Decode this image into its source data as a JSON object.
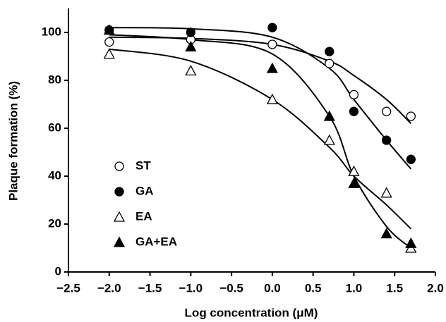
{
  "chart_data": {
    "type": "scatter",
    "x_label": "Log concentration (μM)",
    "y_label": "Plaque formation (%)",
    "x": [
      -2,
      -1,
      0,
      0.7,
      1,
      1.4,
      1.7
    ],
    "series": [
      {
        "name": "ST",
        "color": "#000000",
        "marker": "circle",
        "filled": false,
        "values": [
          96,
          97,
          95,
          87,
          74,
          67,
          65
        ],
        "fit": [
          98,
          97.5,
          95,
          88,
          82,
          72,
          62
        ]
      },
      {
        "name": "GA",
        "color": "#000000",
        "marker": "circle",
        "filled": true,
        "values": [
          101,
          100,
          102,
          92,
          67,
          55,
          47
        ],
        "fit": [
          102,
          101.5,
          98,
          85,
          72,
          55,
          43
        ]
      },
      {
        "name": "EA",
        "color": "#000000",
        "marker": "triangle",
        "filled": false,
        "values": [
          91,
          84,
          72,
          55,
          42,
          33,
          10
        ],
        "fit": [
          93,
          88,
          72,
          52,
          40,
          28,
          18
        ]
      },
      {
        "name": "GA+EA",
        "color": "#000000",
        "marker": "triangle",
        "filled": true,
        "values": [
          101,
          94,
          85,
          65,
          37,
          16,
          12
        ],
        "fit": [
          99,
          97,
          91,
          65,
          40,
          19,
          10
        ]
      }
    ],
    "xlim": [
      -2.5,
      2.0
    ],
    "xticks": [
      {
        "value": -2.5,
        "label": "−2.5"
      },
      {
        "value": -2.0,
        "label": "−2.0"
      },
      {
        "value": -1.5,
        "label": "−1.5"
      },
      {
        "value": -1.0,
        "label": "−1.0"
      },
      {
        "value": -0.5,
        "label": "−0.5"
      },
      {
        "value": 0,
        "label": "0.0"
      },
      {
        "value": 0.5,
        "label": "0.5"
      },
      {
        "value": 1.0,
        "label": "1.0"
      },
      {
        "value": 1.5,
        "label": "1.5"
      },
      {
        "value": 2.0,
        "label": "2.0"
      }
    ],
    "ylim": [
      0,
      110
    ],
    "yticks": [
      0,
      20,
      40,
      60,
      80,
      100
    ],
    "legend": "lower-left",
    "grid": false
  }
}
